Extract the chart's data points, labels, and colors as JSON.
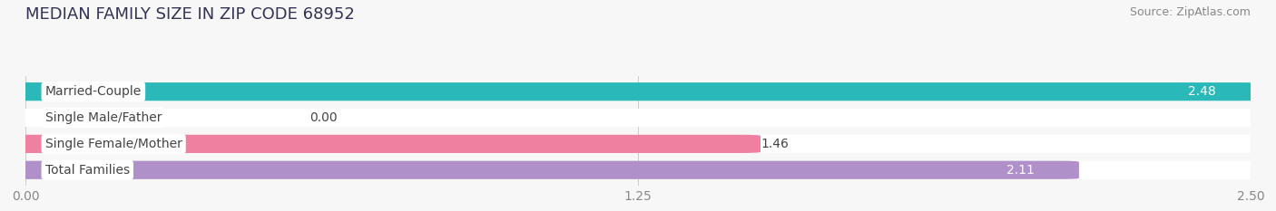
{
  "title": "MEDIAN FAMILY SIZE IN ZIP CODE 68952",
  "source": "Source: ZipAtlas.com",
  "categories": [
    "Married-Couple",
    "Single Male/Father",
    "Single Female/Mother",
    "Total Families"
  ],
  "values": [
    2.48,
    0.0,
    1.46,
    2.11
  ],
  "bar_colors": [
    "#2ab8b8",
    "#a8b8e8",
    "#f080a0",
    "#b090c8"
  ],
  "xlim_max": 2.5,
  "xticks": [
    0.0,
    1.25,
    2.5
  ],
  "xtick_labels": [
    "0.00",
    "1.25",
    "2.50"
  ],
  "bar_height": 0.62,
  "background_color": "#f7f7f7",
  "bar_bg_color": "#e4e4e4",
  "title_color": "#333355",
  "title_fontsize": 13,
  "label_fontsize": 10,
  "value_fontsize": 10,
  "source_fontsize": 9,
  "source_color": "#888888",
  "tick_color": "#888888"
}
